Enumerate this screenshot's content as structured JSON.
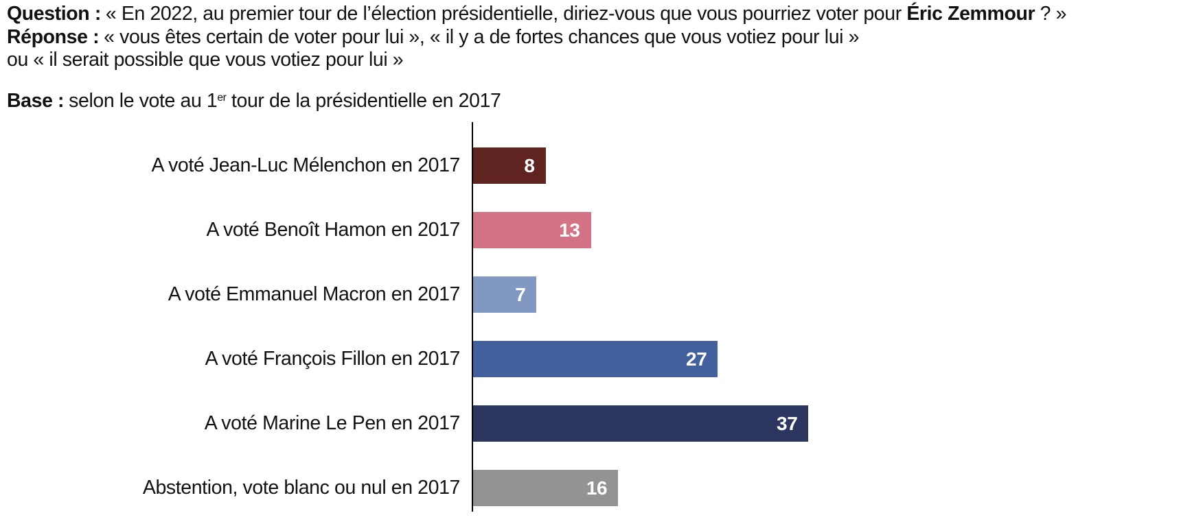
{
  "header": {
    "question": {
      "label": "Question :",
      "text_before": "« En 2022, au premier tour de l’élection présidentielle, diriez-vous que vous pourriez voter pour ",
      "emphasis": "Éric Zemmour",
      "text_after": " ? »"
    },
    "response": {
      "label": "Réponse :",
      "line1": "« vous êtes certain de voter pour lui », « il y a de fortes chances que vous votiez pour lui »",
      "line2": "ou « il serait possible que vous votiez pour lui »"
    },
    "base": {
      "label": "Base :",
      "text_before_sup": "selon le vote au 1",
      "sup": "er",
      "text_after_sup": " tour de la présidentielle en 2017"
    }
  },
  "chart_data": {
    "type": "bar",
    "orientation": "horizontal",
    "title": "",
    "xlabel": "",
    "ylabel": "",
    "categories": [
      "A voté Jean-Luc Mélenchon en 2017",
      "A voté Benoît Hamon en 2017",
      "A voté Emmanuel Macron en 2017",
      "A voté François Fillon en 2017",
      "A voté Marine Le Pen en 2017",
      "Abstention, vote blanc ou nul en 2017"
    ],
    "values": [
      8,
      13,
      7,
      27,
      37,
      16
    ],
    "bar_colors": [
      "#602420",
      "#d47386",
      "#8198c3",
      "#42609c",
      "#2b355e",
      "#939393"
    ],
    "value_label_color": "#ffffff",
    "axis_color": "#000000",
    "xlim": [
      0,
      80
    ],
    "grid": false,
    "legend": false,
    "value_labels": "inside-end"
  }
}
